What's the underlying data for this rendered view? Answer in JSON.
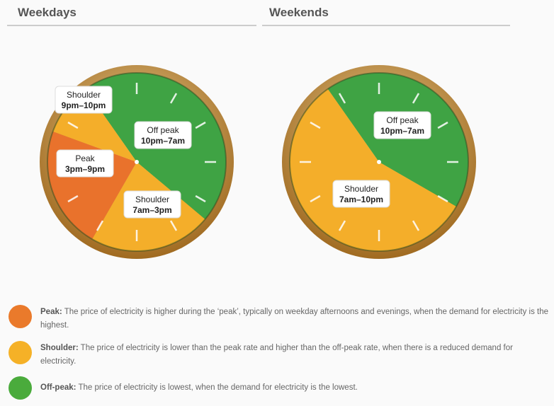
{
  "panels": [
    {
      "title": "Weekdays",
      "segments": [
        {
          "name": "Shoulder",
          "time": "9pm–10pm"
        },
        {
          "name": "Peak",
          "time": "3pm–9pm"
        },
        {
          "name": "Off peak",
          "time": "10pm–7am"
        },
        {
          "name": "Shoulder",
          "time": "7am–3pm"
        }
      ]
    },
    {
      "title": "Weekends",
      "segments": [
        {
          "name": "Off peak",
          "time": "10pm–7am"
        },
        {
          "name": "Shoulder",
          "time": "7am–10pm"
        }
      ]
    }
  ],
  "legend": [
    {
      "term": "Peak:",
      "text": "The price of electricity is higher during the ‘peak’, typically on weekday afternoons and evenings, when the demand for electricity is the highest."
    },
    {
      "term": "Shoulder:",
      "text": "The price of electricity is lower than the peak rate and higher than the off-peak rate, when there is a reduced demand for electricity."
    },
    {
      "term": "Off-peak:",
      "text": "The price of electricity is lowest, when the demand for electricity is the lowest."
    }
  ]
}
